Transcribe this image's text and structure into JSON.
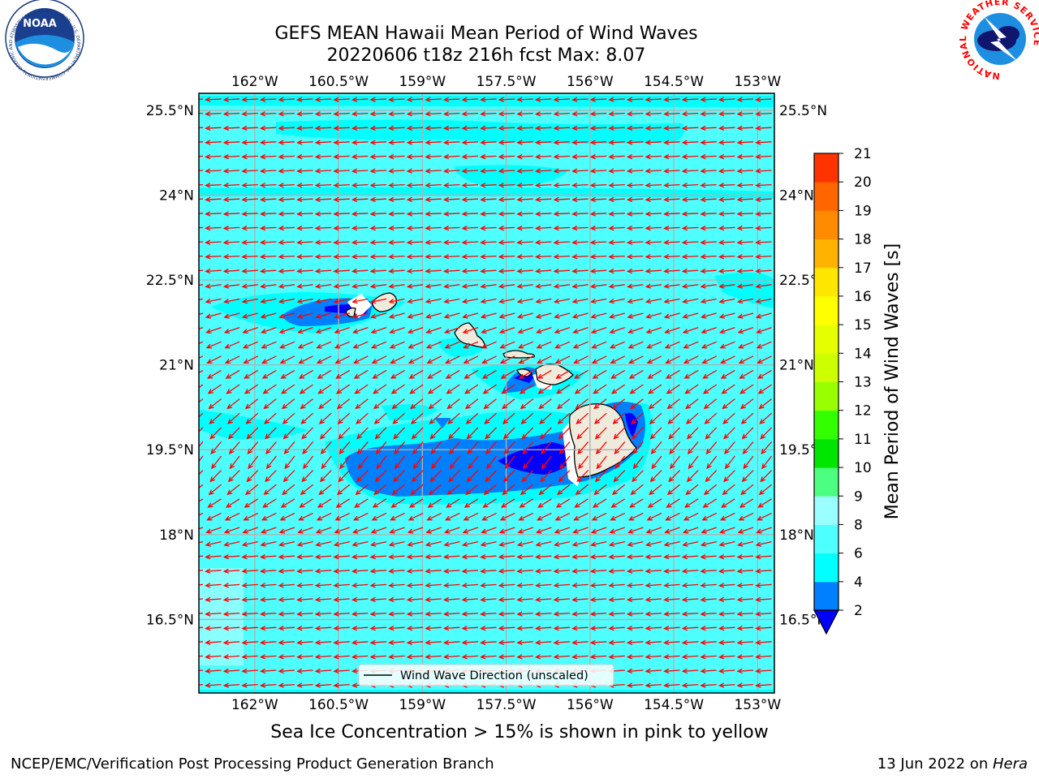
{
  "title": {
    "line1": "GEFS MEAN Hawaii Mean Period of Wind Waves",
    "line2": "20220606 t18z 216h fcst   Max: 8.07"
  },
  "logos": {
    "noaa": {
      "text": "NOAA",
      "ring_text": "NATIONAL OCEANIC AND ATMOSPHERIC ADMINISTRATION · U.S. DEPARTMENT OF COMMERCE"
    },
    "nws": {
      "ring_text": "NATIONAL WEATHER SERVICE"
    }
  },
  "map": {
    "lon_labels": [
      "162°W",
      "160.5°W",
      "159°W",
      "157.5°W",
      "156°W",
      "154.5°W",
      "153°W"
    ],
    "lat_labels": [
      "25.5°N",
      "24°N",
      "22.5°N",
      "21°N",
      "19.5°N",
      "18°N",
      "16.5°N"
    ],
    "lon_range": [
      -163,
      -152.7
    ],
    "lat_range": [
      15.2,
      25.8
    ],
    "vector_color": "#ff0000",
    "ocean_color": "#4dffff",
    "land_color": "#efebdc",
    "legend_label": "Wind Wave Direction (unscaled)"
  },
  "colorbar": {
    "label": "Mean Period of Wind Waves [s]",
    "ticks": [
      "2",
      "4",
      "6",
      "8",
      "9",
      "10",
      "11",
      "12",
      "13",
      "14",
      "15",
      "16",
      "17",
      "18",
      "19",
      "20",
      "21"
    ],
    "colors": [
      "#0080ff",
      "#00ffff",
      "#4dffff",
      "#99ffff",
      "#4dff80",
      "#00e600",
      "#33ff00",
      "#99ff00",
      "#ccff00",
      "#e6ff00",
      "#ffff00",
      "#ffe600",
      "#ffb300",
      "#ff8c00",
      "#ff6600",
      "#ff3300",
      "#ff0000"
    ],
    "under_color": "#0000ff"
  },
  "caption": "Sea Ice Concentration > 15% is shown in pink to yellow",
  "footer": {
    "left": "NCEP/EMC/Verification Post Processing Product Generation Branch",
    "right_date": "13 Jun 2022 on ",
    "right_host": "Hera"
  }
}
